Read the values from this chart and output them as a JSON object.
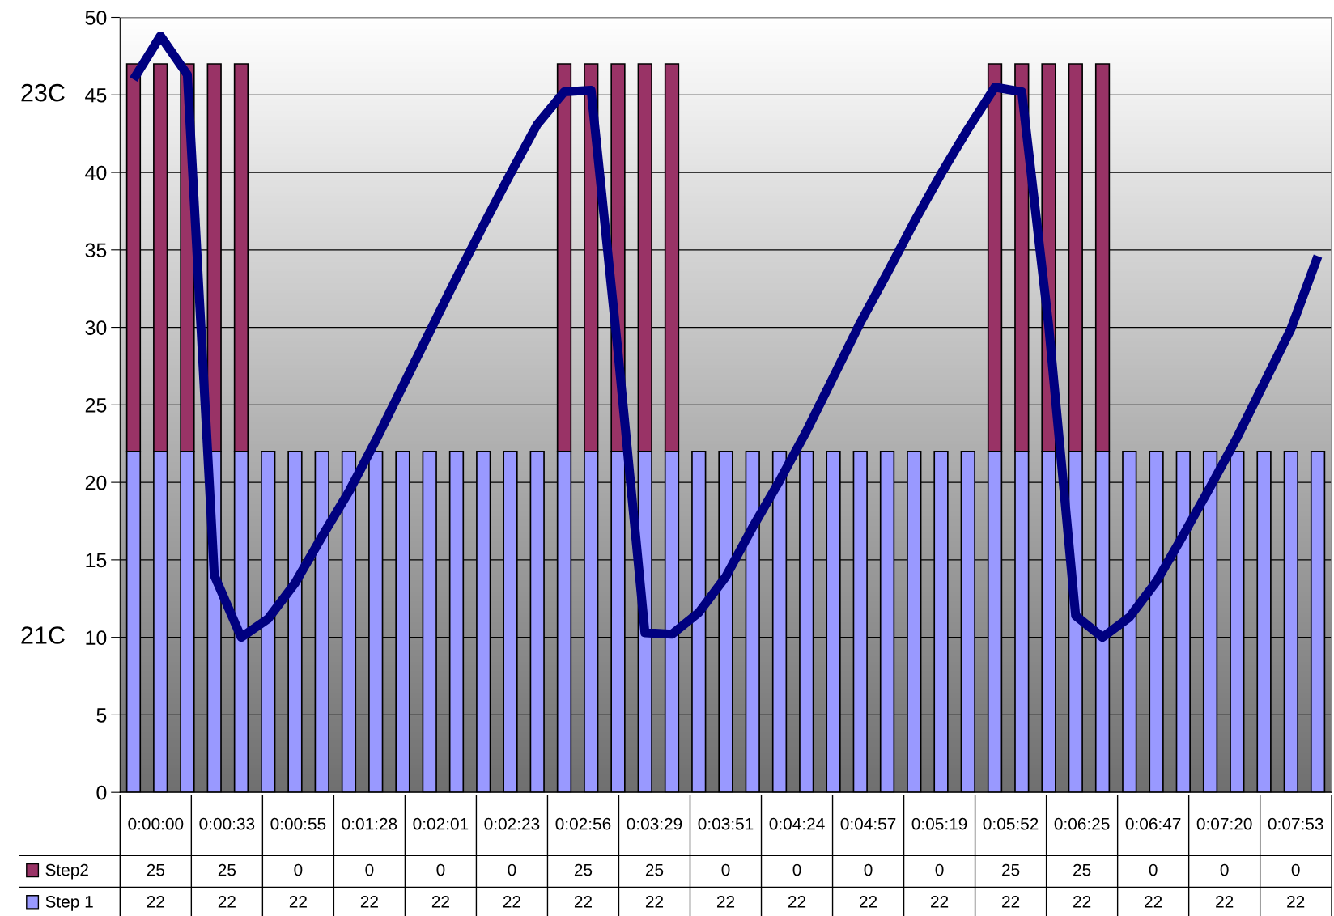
{
  "chart_data": [
    {
      "type": "bar",
      "stacked": true,
      "categories": [
        null,
        null,
        null,
        null,
        null,
        null,
        null,
        null,
        null,
        null,
        null,
        null,
        null,
        null,
        null,
        null,
        null,
        null,
        null,
        null,
        null,
        null,
        null,
        null,
        null,
        null,
        null,
        null,
        null,
        null,
        null,
        null,
        null,
        null,
        null,
        null,
        null,
        null,
        null,
        null,
        null,
        null,
        null,
        null,
        null
      ],
      "series": [
        {
          "color": "#9999ff",
          "values": [
            22,
            22,
            22,
            22,
            22,
            22,
            22,
            22,
            22,
            22,
            22,
            22,
            22,
            22,
            22,
            22,
            22,
            22,
            22,
            22,
            22,
            22,
            22,
            22,
            22,
            22,
            22,
            22,
            22,
            22,
            22,
            22,
            22,
            22,
            22,
            22,
            22,
            22,
            22,
            22,
            22,
            22,
            22,
            22,
            22
          ]
        },
        {
          "color": "#993366",
          "values": [
            25,
            25,
            25,
            25,
            25,
            0,
            0,
            0,
            0,
            0,
            0,
            0,
            0,
            0,
            0,
            0,
            25,
            25,
            25,
            25,
            25,
            0,
            0,
            0,
            0,
            0,
            0,
            0,
            0,
            0,
            0,
            0,
            25,
            25,
            25,
            25,
            25,
            0,
            0,
            0,
            0,
            0,
            0,
            0,
            0
          ]
        },
        {
          "type": "line",
          "color": "#000080",
          "values": [
            46.0,
            48.8,
            46.3,
            14.0,
            10.0,
            11.2,
            13.5,
            16.5,
            19.4,
            22.7,
            26.2,
            29.7,
            33.2,
            36.6,
            39.9,
            43.1,
            45.2,
            45.3,
            28.4,
            10.3,
            10.2,
            11.6,
            13.9,
            17.1,
            20.1,
            23.3,
            26.8,
            30.3,
            33.5,
            36.8,
            39.9,
            42.8,
            45.5,
            45.2,
            30.1,
            11.4,
            10.0,
            11.3,
            13.6,
            16.6,
            19.7,
            22.9,
            26.4,
            29.9,
            34.6
          ]
        }
      ],
      "ylim": [
        0,
        50
      ],
      "yticks": [
        0,
        5,
        10,
        15,
        20,
        25,
        30,
        35,
        40,
        45,
        50
      ],
      "grid": "y",
      "annotations": [
        "23C",
        "21C"
      ]
    },
    {
      "type": "other",
      "categories": [
        "0:00:00",
        "0:00:33",
        "0:00:55",
        "0:01:28",
        "0:02:01",
        "0:02:23",
        "0:02:56",
        "0:03:29",
        "0:03:51",
        "0:04:24",
        "0:04:57",
        "0:05:19",
        "0:05:52",
        "0:06:25",
        "0:06:47",
        "0:07:20",
        "0:07:53"
      ],
      "series": [
        {
          "name": "Step2",
          "color": "#993366",
          "values": [
            25,
            25,
            0,
            0,
            0,
            0,
            25,
            25,
            0,
            0,
            0,
            0,
            25,
            25,
            0,
            0,
            0
          ]
        },
        {
          "name": "Step 1",
          "color": "#9999ff",
          "values": [
            22,
            22,
            22,
            22,
            22,
            22,
            22,
            22,
            22,
            22,
            22,
            22,
            22,
            22,
            22,
            22,
            22
          ]
        }
      ],
      "data_labels": true
    }
  ]
}
